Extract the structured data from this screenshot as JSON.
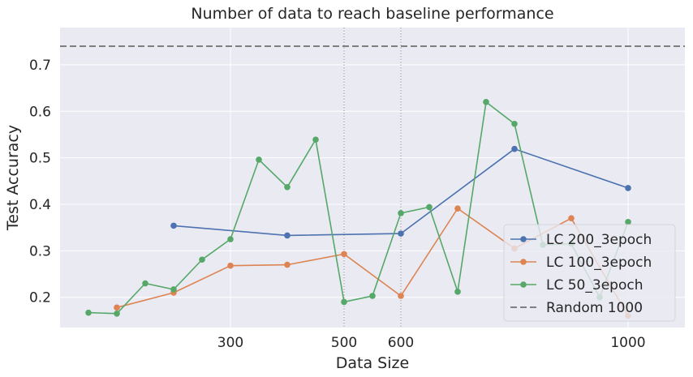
{
  "chart_data": {
    "type": "line",
    "title": "Number of data to reach baseline performance",
    "xlabel": "Data Size",
    "ylabel": "Test Accuracy",
    "xlim": [
      0,
      1100
    ],
    "ylim": [
      0.135,
      0.78
    ],
    "x_ticks": [
      300,
      500,
      600,
      1000
    ],
    "y_ticks": [
      0.2,
      0.3,
      0.4,
      0.5,
      0.6,
      0.7
    ],
    "vertical_markers": [
      500,
      600
    ],
    "grid": true,
    "legend_position": "lower-right",
    "series": [
      {
        "name": "LC 200_3epoch",
        "color": "#4c72b0",
        "x": [
          200,
          400,
          600,
          800,
          1000
        ],
        "y": [
          0.354,
          0.333,
          0.337,
          0.519,
          0.435
        ]
      },
      {
        "name": "LC 100_3epoch",
        "color": "#dd8452",
        "x": [
          100,
          200,
          300,
          400,
          500,
          600,
          700,
          800,
          900,
          1000
        ],
        "y": [
          0.178,
          0.21,
          0.268,
          0.27,
          0.293,
          0.203,
          0.391,
          0.305,
          0.37,
          0.16
        ]
      },
      {
        "name": "LC 50_3epoch",
        "color": "#55a868",
        "x": [
          50,
          100,
          150,
          200,
          250,
          300,
          350,
          400,
          450,
          500,
          550,
          600,
          650,
          700,
          750,
          800,
          850,
          900,
          950,
          1000
        ],
        "y": [
          0.167,
          0.165,
          0.23,
          0.217,
          0.281,
          0.325,
          0.496,
          0.437,
          0.539,
          0.19,
          0.203,
          0.381,
          0.394,
          0.212,
          0.62,
          0.573,
          0.313,
          0.315,
          0.2,
          0.362
        ]
      }
    ],
    "reference_lines": [
      {
        "name": "Random 1000",
        "color": "#7f7f7f",
        "y": 0.74,
        "style": "dashed"
      }
    ]
  }
}
